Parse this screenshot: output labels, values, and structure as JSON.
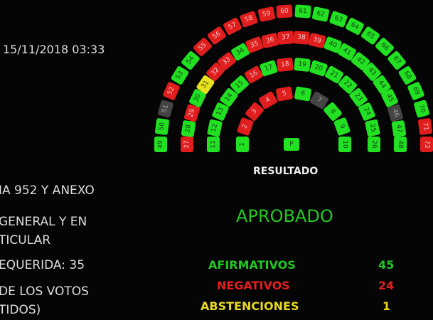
{
  "datetime": "15/11/2018  03:33",
  "info": {
    "line1": "IA 952 Y ANEXO",
    "line2a": "GENERAL Y EN",
    "line2b": "TICULAR",
    "line3": "EQUERIDA: 35",
    "line4a": "DE LOS VOTOS",
    "line4b": "TIDOS)"
  },
  "result": {
    "heading": "RESULTADO",
    "outcome": "APROBADO",
    "afirmativos_label": "AFIRMATIVOS",
    "afirmativos": "45",
    "negativos_label": "NEGATIVOS",
    "negativos": "24",
    "abstenciones_label": "ABSTENCIONES",
    "abstenciones": "1"
  },
  "colors": {
    "yes": "#22e022",
    "no": "#e01e1e",
    "abstain": "#e6e020",
    "absent": "#444444"
  },
  "president_seat": {
    "label": "P",
    "vote": "yes"
  },
  "seat_rows": [
    [
      [
        "1",
        "yes"
      ],
      [
        "2",
        "no"
      ],
      [
        "3",
        "no"
      ],
      [
        "4",
        "no"
      ],
      [
        "5",
        "no"
      ],
      [
        "6",
        "yes"
      ],
      [
        "7",
        "none"
      ],
      [
        "8",
        "yes"
      ],
      [
        "9",
        "yes"
      ],
      [
        "10",
        "yes"
      ]
    ],
    [
      [
        "11",
        "yes"
      ],
      [
        "12",
        "yes"
      ],
      [
        "13",
        "yes"
      ],
      [
        "14",
        "yes"
      ],
      [
        "15",
        "yes"
      ],
      [
        "16",
        "no"
      ],
      [
        "17",
        "yes"
      ],
      [
        "18",
        "no"
      ],
      [
        "19",
        "yes"
      ],
      [
        "20",
        "yes"
      ],
      [
        "21",
        "yes"
      ],
      [
        "22",
        "yes"
      ],
      [
        "23",
        "yes"
      ],
      [
        "24",
        "yes"
      ],
      [
        "25",
        "yes"
      ],
      [
        "26",
        "yes"
      ]
    ],
    [
      [
        "27",
        "no"
      ],
      [
        "28",
        "yes"
      ],
      [
        "29",
        "no"
      ],
      [
        "30",
        "yes"
      ],
      [
        "31",
        "abs"
      ],
      [
        "32",
        "no"
      ],
      [
        "33",
        "no"
      ],
      [
        "34",
        "yes"
      ],
      [
        "35",
        "no"
      ],
      [
        "36",
        "no"
      ],
      [
        "37",
        "no"
      ],
      [
        "38",
        "no"
      ],
      [
        "39",
        "no"
      ],
      [
        "40",
        "yes"
      ],
      [
        "41",
        "yes"
      ],
      [
        "42",
        "yes"
      ],
      [
        "43",
        "yes"
      ],
      [
        "44",
        "yes"
      ],
      [
        "45",
        "yes"
      ],
      [
        "46",
        "none"
      ],
      [
        "47",
        "yes"
      ],
      [
        "48",
        "yes"
      ]
    ],
    [
      [
        "49",
        "yes"
      ],
      [
        "50",
        "yes"
      ],
      [
        "51",
        "none"
      ],
      [
        "52",
        "no"
      ],
      [
        "53",
        "yes"
      ],
      [
        "54",
        "yes"
      ],
      [
        "55",
        "no"
      ],
      [
        "56",
        "no"
      ],
      [
        "57",
        "no"
      ],
      [
        "58",
        "no"
      ],
      [
        "59",
        "no"
      ],
      [
        "60",
        "no"
      ],
      [
        "61",
        "yes"
      ],
      [
        "62",
        "yes"
      ],
      [
        "63",
        "yes"
      ],
      [
        "64",
        "yes"
      ],
      [
        "65",
        "yes"
      ],
      [
        "66",
        "yes"
      ],
      [
        "67",
        "yes"
      ],
      [
        "68",
        "yes"
      ],
      [
        "69",
        "yes"
      ],
      [
        "70",
        "yes"
      ],
      [
        "71",
        "no"
      ],
      [
        "72",
        "no"
      ]
    ]
  ]
}
